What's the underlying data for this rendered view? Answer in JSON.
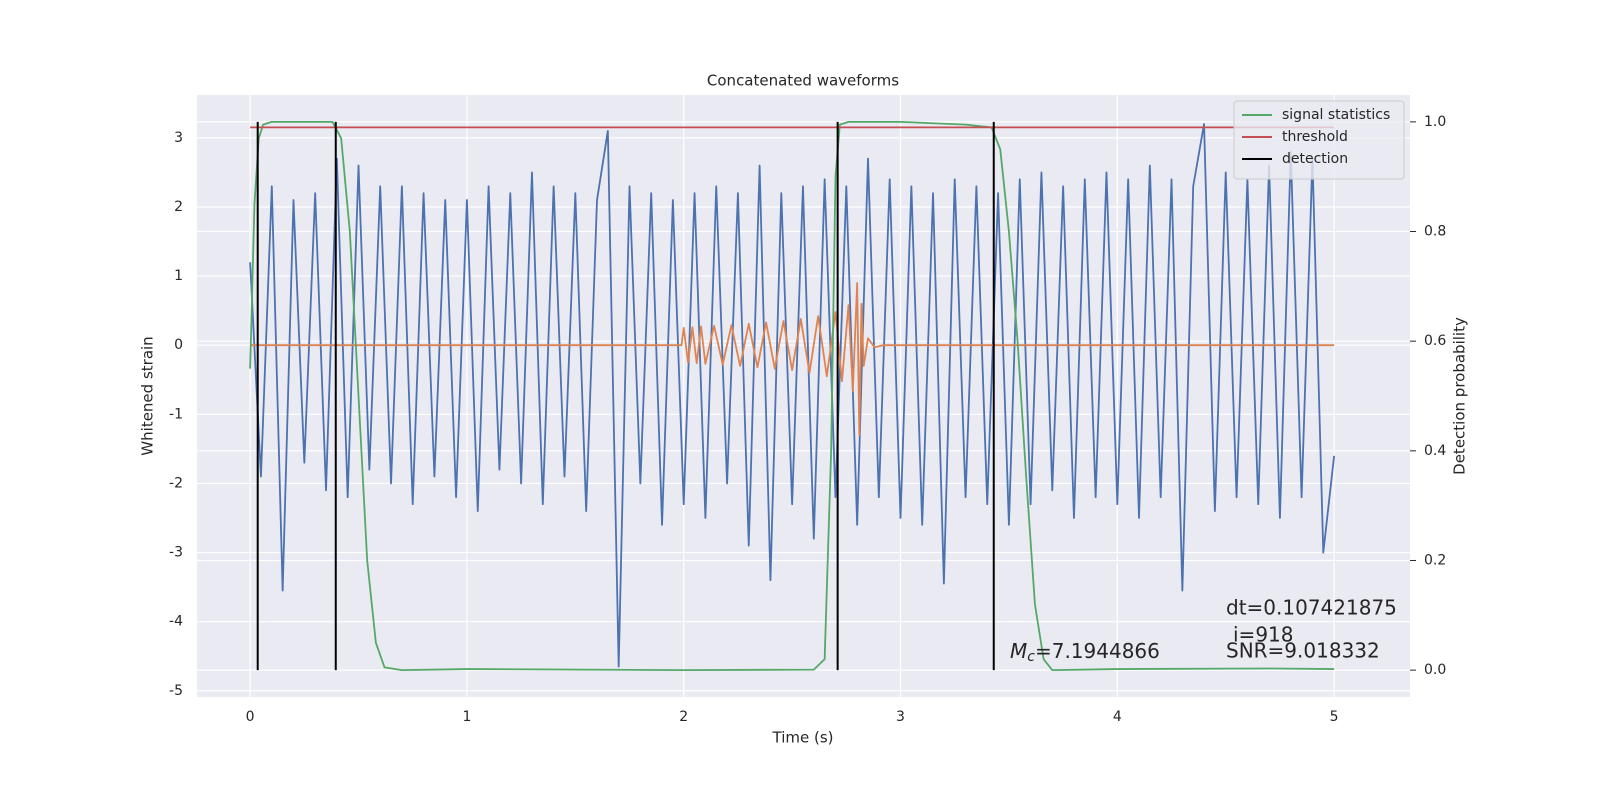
{
  "chart_data": {
    "type": "line",
    "title": "Concatenated waveforms",
    "xlabel": "Time (s)",
    "ylabel": "Whitened strain",
    "y2label": "Detection probability",
    "xlim": [
      -0.245,
      5.35
    ],
    "xticks": [
      0,
      1,
      2,
      3,
      4,
      5
    ],
    "ylim": [
      -5.09,
      3.62
    ],
    "yticks": [
      -5,
      -4,
      -3,
      -2,
      -1,
      0,
      1,
      2,
      3
    ],
    "y2lim": [
      -0.049,
      1.049
    ],
    "y2ticks": [
      {
        "value": 0,
        "label": "0.0"
      },
      {
        "value": 0.2,
        "label": "0.2"
      },
      {
        "value": 0.4,
        "label": "0.4"
      },
      {
        "value": 0.6,
        "label": "0.6"
      },
      {
        "value": 0.8,
        "label": "0.8"
      },
      {
        "value": 1,
        "label": "1.0"
      }
    ],
    "grid": true,
    "legend": "upper right",
    "series": [
      {
        "color": "#4c72b0",
        "axis": "y",
        "x": [
          0,
          0.05,
          0.1,
          0.15,
          0.2,
          0.25,
          0.3,
          0.35,
          0.4,
          0.45,
          0.5,
          0.55,
          0.6,
          0.65,
          0.7,
          0.75,
          0.8,
          0.85,
          0.9,
          0.95,
          1,
          1.05,
          1.1,
          1.15,
          1.2,
          1.25,
          1.3,
          1.35,
          1.4,
          1.45,
          1.5,
          1.55,
          1.6,
          1.65,
          1.7,
          1.75,
          1.8,
          1.85,
          1.9,
          1.95,
          2,
          2.05,
          2.1,
          2.15,
          2.2,
          2.25,
          2.3,
          2.35,
          2.4,
          2.45,
          2.5,
          2.55,
          2.6,
          2.65,
          2.7,
          2.75,
          2.8,
          2.85,
          2.9,
          2.95,
          3,
          3.05,
          3.1,
          3.15,
          3.2,
          3.25,
          3.3,
          3.35,
          3.4,
          3.45,
          3.5,
          3.55,
          3.6,
          3.65,
          3.7,
          3.75,
          3.8,
          3.85,
          3.9,
          3.95,
          4,
          4.05,
          4.1,
          4.15,
          4.2,
          4.25,
          4.3,
          4.35,
          4.4,
          4.45,
          4.5,
          4.55,
          4.6,
          4.65,
          4.7,
          4.75,
          4.8,
          4.85,
          4.9,
          4.95,
          5
        ],
        "values": [
          1.2,
          -1.9,
          2.3,
          -3.55,
          2.1,
          -1.7,
          2.2,
          -2.1,
          2.7,
          -2.2,
          2.6,
          -1.8,
          2.3,
          -2.0,
          2.3,
          -2.3,
          2.2,
          -1.9,
          2.1,
          -2.2,
          2.1,
          -2.4,
          2.3,
          -1.8,
          2.2,
          -2.0,
          2.5,
          -2.3,
          2.3,
          -1.9,
          2.2,
          -2.4,
          2.1,
          3.1,
          -4.65,
          2.3,
          -2.0,
          2.2,
          -2.6,
          2.1,
          -2.3,
          2.2,
          -2.5,
          2.3,
          -2.0,
          2.2,
          -2.9,
          2.6,
          -3.4,
          2.2,
          -2.3,
          2.3,
          -2.8,
          2.4,
          -2.2,
          2.3,
          -2.6,
          2.7,
          -2.2,
          2.4,
          -2.5,
          2.3,
          -2.6,
          2.2,
          -3.45,
          2.4,
          -2.2,
          2.3,
          -2.3,
          2.2,
          -2.6,
          2.4,
          -2.3,
          2.5,
          -2.1,
          2.3,
          -2.5,
          2.4,
          -2.2,
          2.5,
          -2.3,
          2.4,
          -2.5,
          2.6,
          -2.2,
          2.4,
          -3.55,
          2.3,
          3.2,
          -2.4,
          2.5,
          -2.2,
          2.4,
          -2.3,
          2.6,
          -2.5,
          2.8,
          -2.2,
          2.7,
          -3.0,
          -1.6
        ]
      },
      {
        "color": "#dd8452",
        "axis": "y",
        "x": [
          0,
          1.99,
          2,
          2.02,
          2.04,
          2.06,
          2.08,
          2.1,
          2.14,
          2.18,
          2.22,
          2.26,
          2.3,
          2.34,
          2.38,
          2.42,
          2.46,
          2.5,
          2.54,
          2.58,
          2.62,
          2.66,
          2.7,
          2.73,
          2.76,
          2.78,
          2.8,
          2.81,
          2.82,
          2.83,
          2.85,
          2.88,
          2.92,
          5
        ],
        "values": [
          0,
          0,
          0.25,
          -0.25,
          0.26,
          -0.26,
          0.27,
          -0.27,
          0.28,
          -0.28,
          0.29,
          -0.3,
          0.31,
          -0.32,
          0.33,
          -0.34,
          0.35,
          -0.36,
          0.38,
          -0.4,
          0.42,
          -0.45,
          0.48,
          -0.52,
          0.58,
          -0.66,
          0.9,
          -1.3,
          0.6,
          -0.3,
          0.1,
          -0.03,
          0,
          0
        ]
      },
      {
        "name": "signal statistics",
        "color": "#55a868",
        "axis": "y2",
        "x": [
          0,
          0.02,
          0.04,
          0.06,
          0.1,
          0.38,
          0.42,
          0.46,
          0.5,
          0.54,
          0.58,
          0.62,
          0.7,
          1,
          2,
          2.6,
          2.65,
          2.68,
          2.7,
          2.72,
          2.76,
          3,
          3.3,
          3.42,
          3.46,
          3.5,
          3.54,
          3.58,
          3.62,
          3.66,
          3.7,
          4,
          4.7,
          5
        ],
        "values": [
          0.55,
          0.85,
          0.97,
          0.995,
          1,
          1,
          0.97,
          0.8,
          0.5,
          0.2,
          0.05,
          0.005,
          0,
          0.002,
          0,
          0.001,
          0.02,
          0.4,
          0.9,
          0.995,
          1,
          1,
          0.995,
          0.99,
          0.95,
          0.8,
          0.6,
          0.35,
          0.12,
          0.02,
          0,
          0.002,
          0.003,
          0.002
        ]
      },
      {
        "name": "threshold",
        "color": "#c44e52",
        "axis": "y2",
        "x": [
          0,
          5
        ],
        "values": [
          0.99,
          0.99
        ]
      },
      {
        "name": "detection",
        "color": "#000000",
        "axis": "y2",
        "x": [
          0.035,
          0.395,
          2.71,
          3.43
        ],
        "ymin": 0,
        "ymax": 1
      }
    ],
    "annotations": {
      "dt": "dt=0.107421875",
      "i": "i=918",
      "snr": "SNR=9.018332",
      "mc_symbol": "M",
      "mc_subscript": "c",
      "mc_value": "=7.1944866"
    }
  }
}
